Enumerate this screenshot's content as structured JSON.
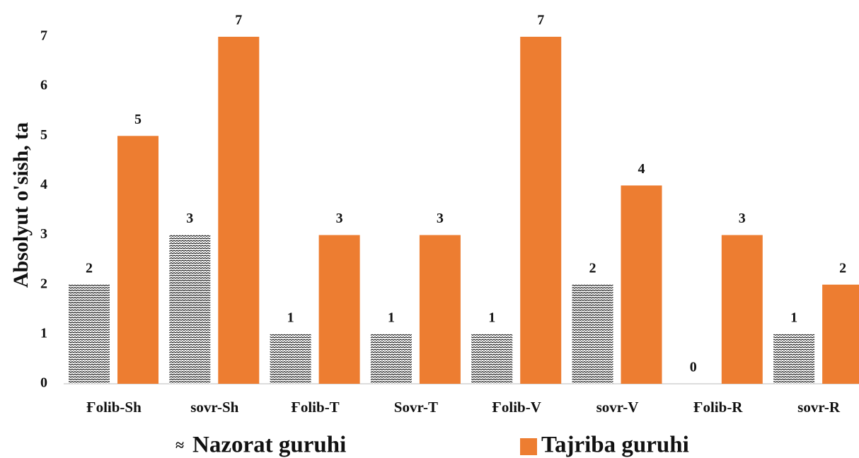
{
  "chart_data": {
    "type": "bar",
    "y_label": "Absolyut o'sish, ta",
    "categories": [
      "Ғolib-Sh",
      "sovr-Sh",
      "Ғolib-T",
      "Sovr-T",
      "Ғolib-V",
      "sovr-V",
      "Ғolib-R",
      "sovr-R"
    ],
    "series": [
      {
        "name": "Nazorat guruhi",
        "color": "#000000",
        "pattern": "zigzag",
        "values": [
          2,
          3,
          1,
          1,
          1,
          2,
          0,
          1
        ]
      },
      {
        "name": "Tajriba guruhi",
        "color": "#ed7d31",
        "values": [
          5,
          7,
          3,
          3,
          7,
          4,
          3,
          2
        ]
      }
    ],
    "ylim": [
      0,
      7
    ],
    "yticks": [
      0,
      1,
      2,
      3,
      4,
      5,
      6,
      7
    ],
    "grid": false,
    "legend": "bottom"
  }
}
